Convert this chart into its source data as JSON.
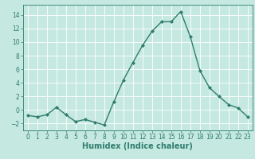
{
  "x": [
    0,
    1,
    2,
    3,
    4,
    5,
    6,
    7,
    8,
    9,
    10,
    11,
    12,
    13,
    14,
    15,
    16,
    17,
    18,
    19,
    20,
    21,
    22,
    23
  ],
  "y": [
    -0.8,
    -1.0,
    -0.7,
    0.4,
    -0.7,
    -1.7,
    -1.4,
    -1.8,
    -2.2,
    1.2,
    4.4,
    7.0,
    9.5,
    11.6,
    13.0,
    13.0,
    14.5,
    10.8,
    5.8,
    3.3,
    2.0,
    0.8,
    0.3,
    -1.0
  ],
  "line_color": "#2e7d6e",
  "marker": "D",
  "marker_size": 2.0,
  "bg_color": "#c5e8e0",
  "grid_color": "#ffffff",
  "xlabel": "Humidex (Indice chaleur)",
  "ylim": [
    -3,
    15.5
  ],
  "xlim": [
    -0.5,
    23.5
  ],
  "yticks": [
    -2,
    0,
    2,
    4,
    6,
    8,
    10,
    12,
    14
  ],
  "xticks": [
    0,
    1,
    2,
    3,
    4,
    5,
    6,
    7,
    8,
    9,
    10,
    11,
    12,
    13,
    14,
    15,
    16,
    17,
    18,
    19,
    20,
    21,
    22,
    23
  ],
  "tick_fontsize": 5.5,
  "xlabel_fontsize": 7.0,
  "line_width": 1.0
}
